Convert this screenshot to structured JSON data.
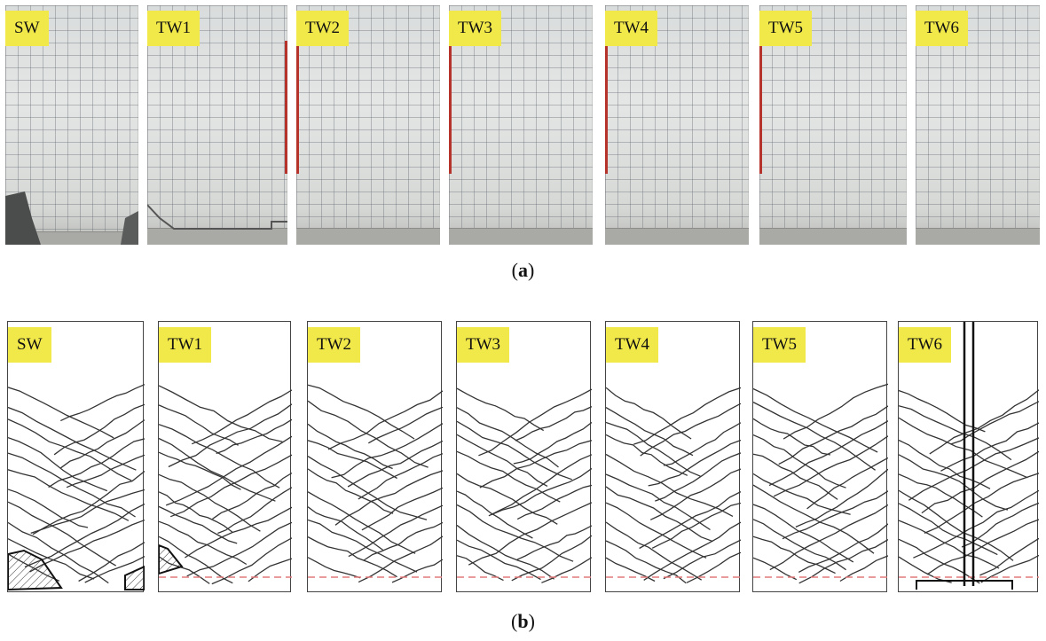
{
  "figure": {
    "caption_a": {
      "open": "(",
      "letter": "a",
      "close": ")"
    },
    "caption_b": {
      "open": "(",
      "letter": "b",
      "close": ")"
    },
    "specimens": [
      "SW",
      "TW1",
      "TW2",
      "TW3",
      "TW4",
      "TW5",
      "TW6"
    ]
  },
  "colors": {
    "label_bg": "#f1e84a",
    "crack_line": "#333333",
    "boundary_dash": "#e27a7a"
  }
}
